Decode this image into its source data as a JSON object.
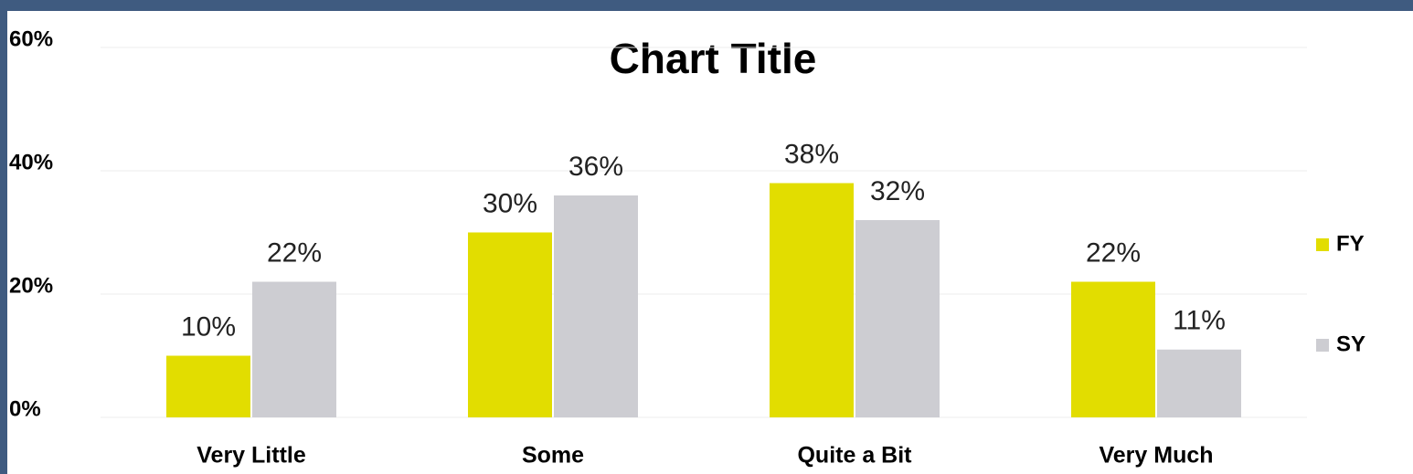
{
  "chart_data": {
    "type": "bar",
    "title": "Chart Title",
    "categories": [
      "Very Little",
      "Some",
      "Quite a Bit",
      "Very Much"
    ],
    "series": [
      {
        "name": "FY",
        "color": "#e2dd00",
        "values": [
          10,
          30,
          38,
          22
        ],
        "value_labels": [
          "10%",
          "30%",
          "38%",
          "22%"
        ]
      },
      {
        "name": "SY",
        "color": "#cdcdd2",
        "values": [
          22,
          36,
          32,
          11
        ],
        "value_labels": [
          "22%",
          "36%",
          "32%",
          "11%"
        ]
      }
    ],
    "ylim": [
      0,
      60
    ],
    "yticks": [
      {
        "value": 0,
        "label": "0%"
      },
      {
        "value": 20,
        "label": "20%"
      },
      {
        "value": 40,
        "label": "40%"
      },
      {
        "value": 60,
        "label": "60%"
      }
    ],
    "grid": true,
    "legend": "right"
  }
}
